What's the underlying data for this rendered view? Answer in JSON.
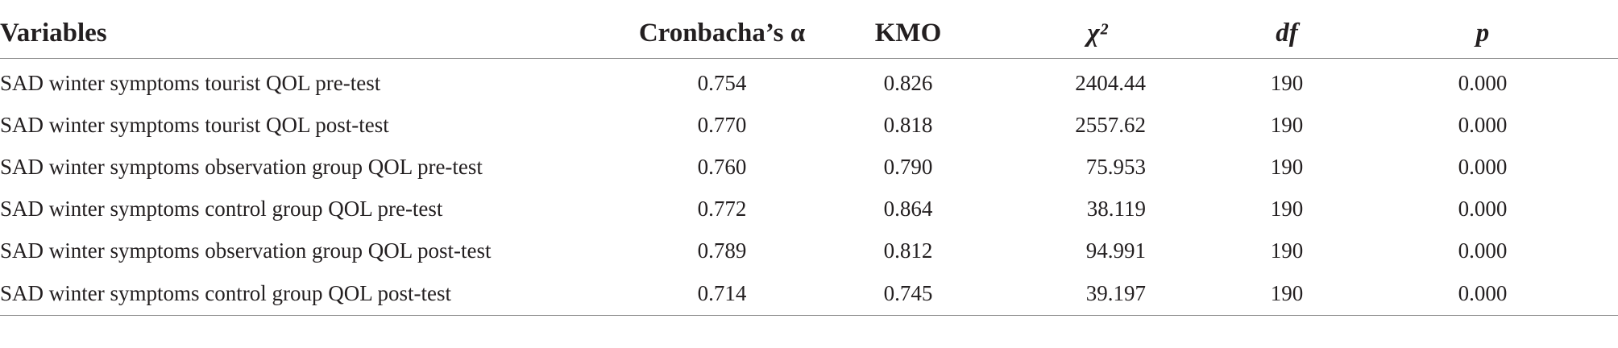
{
  "table": {
    "headers": {
      "variables": "Variables",
      "cronbach": "Cronbacha’s α",
      "kmo": "KMO",
      "chi": "χ²",
      "df": "df",
      "p": "p"
    },
    "rows": [
      {
        "variable": "SAD winter symptoms tourist QOL pre-test",
        "alpha": "0.754",
        "kmo": "0.826",
        "chi2": "2404.44",
        "df": "190",
        "p": "0.000"
      },
      {
        "variable": "SAD winter symptoms tourist QOL post-test",
        "alpha": "0.770",
        "kmo": "0.818",
        "chi2": "2557.62",
        "df": "190",
        "p": "0.000"
      },
      {
        "variable": "SAD winter symptoms observation group QOL pre-test",
        "alpha": "0.760",
        "kmo": "0.790",
        "chi2": "75.953",
        "df": "190",
        "p": "0.000"
      },
      {
        "variable": "SAD winter symptoms control group QOL pre-test",
        "alpha": "0.772",
        "kmo": "0.864",
        "chi2": "38.119",
        "df": "190",
        "p": "0.000"
      },
      {
        "variable": "SAD winter symptoms observation group QOL post-test",
        "alpha": "0.789",
        "kmo": "0.812",
        "chi2": "94.991",
        "df": "190",
        "p": "0.000"
      },
      {
        "variable": "SAD winter symptoms control group QOL post-test",
        "alpha": "0.714",
        "kmo": "0.745",
        "chi2": "39.197",
        "df": "190",
        "p": "0.000"
      }
    ]
  }
}
